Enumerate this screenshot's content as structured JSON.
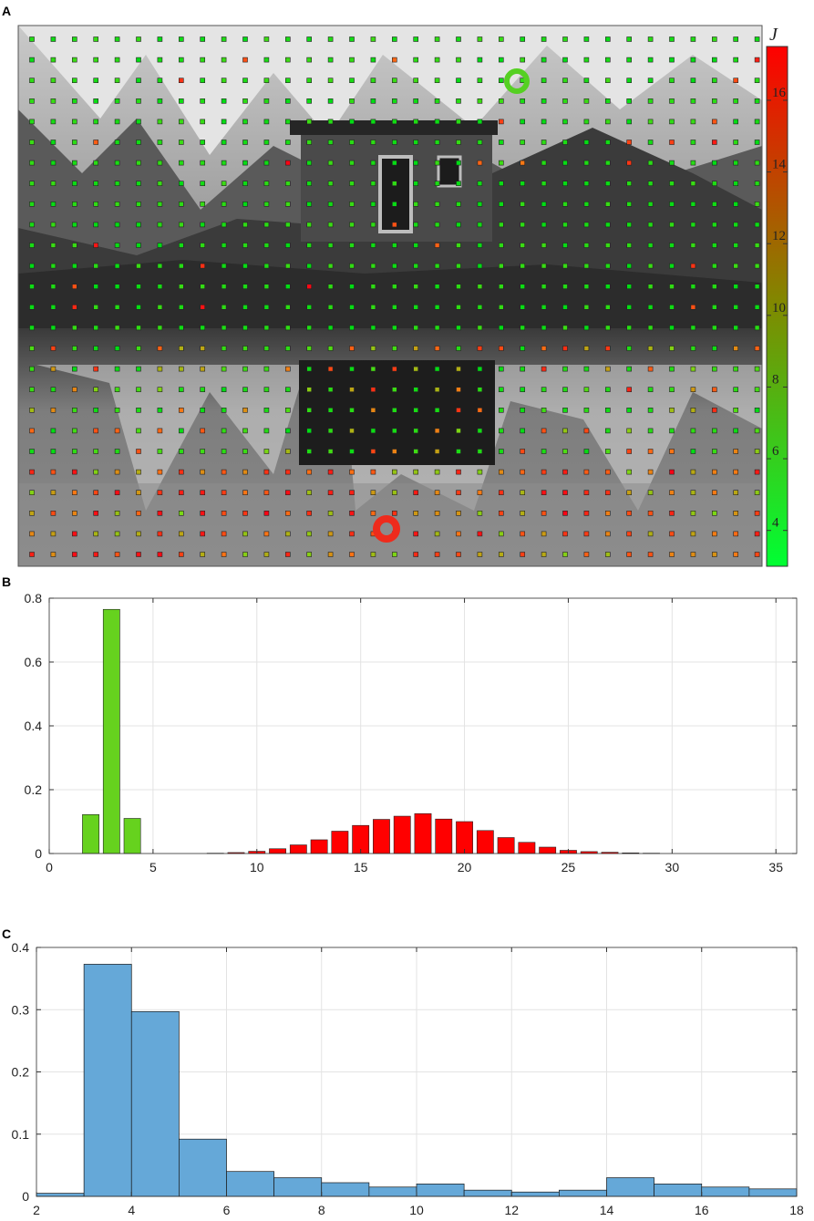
{
  "panels": {
    "a": "A",
    "b": "B",
    "c": "C"
  },
  "colorbar": {
    "title": "J",
    "ticks": [
      4,
      6,
      8,
      10,
      12,
      14,
      16
    ],
    "range": [
      3,
      17.5
    ],
    "colors": {
      "low": "#00ff33",
      "high": "#ff0000"
    }
  },
  "scene": {
    "description_colors": {
      "sky_rock": "#9a9a9a",
      "water": "#6f6f6f",
      "hut": "#2e2e2e"
    },
    "markers": {
      "green_circle_color": "#55d022",
      "red_circle_color": "#ee2b1c"
    }
  },
  "chart_data": [
    {
      "type": "bar",
      "panel": "B",
      "xlim": [
        0,
        36
      ],
      "ylim": [
        0,
        0.8
      ],
      "xticks": [
        0,
        5,
        10,
        15,
        20,
        25,
        30,
        35
      ],
      "yticks": [
        0,
        0.2,
        0.4,
        0.6,
        0.8
      ],
      "grid": true,
      "series": [
        {
          "color": "#66d21e",
          "x": [
            2,
            3,
            4
          ],
          "values": [
            0.122,
            0.765,
            0.11
          ]
        },
        {
          "color": "#ff0000",
          "x": [
            8,
            9,
            10,
            11,
            12,
            13,
            14,
            15,
            16,
            17,
            18,
            19,
            20,
            21,
            22,
            23,
            24,
            25,
            26,
            27,
            28,
            29
          ],
          "values": [
            0.001,
            0.003,
            0.007,
            0.015,
            0.027,
            0.043,
            0.07,
            0.088,
            0.107,
            0.117,
            0.125,
            0.108,
            0.1,
            0.072,
            0.05,
            0.035,
            0.02,
            0.01,
            0.006,
            0.004,
            0.002,
            0.001
          ]
        }
      ]
    },
    {
      "type": "bar",
      "panel": "C",
      "xlim": [
        2,
        18
      ],
      "ylim": [
        0,
        0.4
      ],
      "xticks": [
        2,
        4,
        6,
        8,
        10,
        12,
        14,
        16,
        18
      ],
      "yticks": [
        0,
        0.1,
        0.2,
        0.3,
        0.4
      ],
      "grid": true,
      "bin_edges": [
        2,
        3,
        4,
        5,
        6,
        7,
        8,
        9,
        10,
        11,
        12,
        13,
        14,
        15,
        16,
        17,
        18
      ],
      "values": [
        0.005,
        0.373,
        0.297,
        0.092,
        0.04,
        0.03,
        0.022,
        0.015,
        0.02,
        0.01,
        0.007,
        0.01,
        0.03,
        0.02,
        0.015,
        0.012
      ],
      "color": "#65a8d8"
    }
  ]
}
